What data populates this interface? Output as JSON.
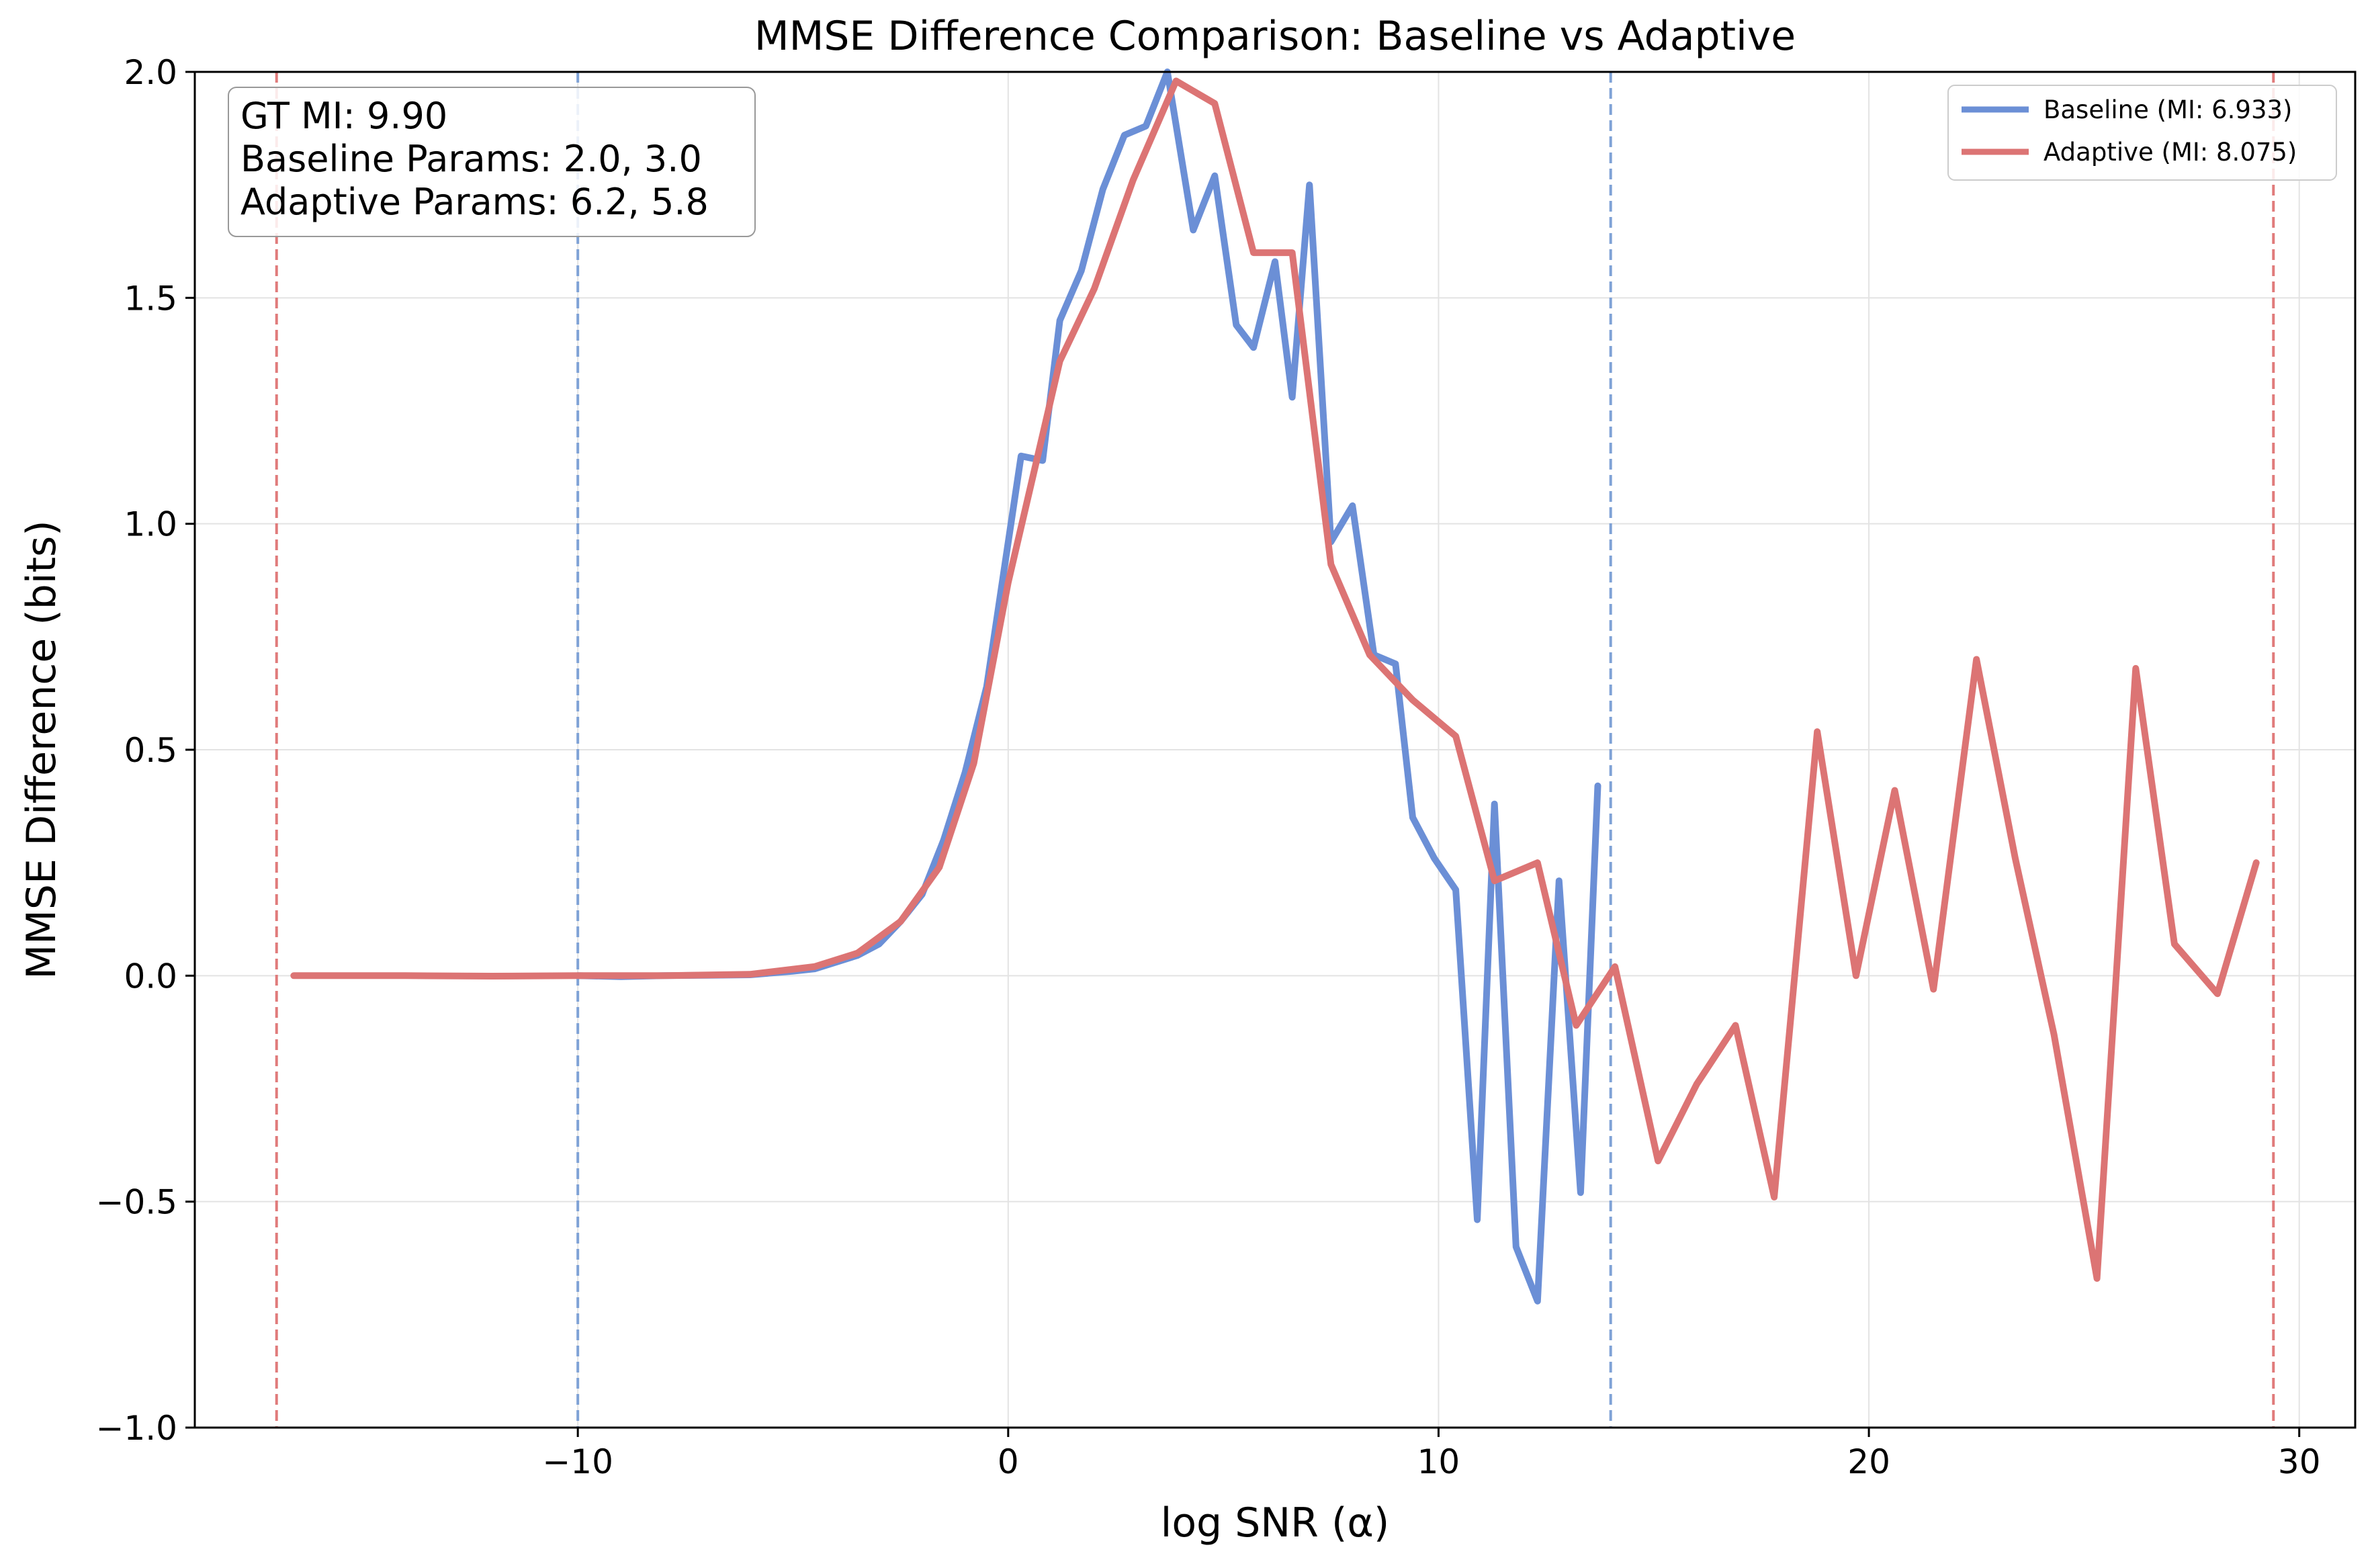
{
  "chart_data": {
    "type": "line",
    "title": "MMSE Difference Comparison: Baseline vs Adaptive",
    "xlabel": "log SNR (α)",
    "ylabel": "MMSE Difference (bits)",
    "xlim": [
      -18.9,
      31.3
    ],
    "ylim": [
      -1.0,
      2.0
    ],
    "xticks": [
      -10,
      0,
      10,
      20,
      30
    ],
    "xtick_labels": [
      "−10",
      "0",
      "10",
      "20",
      "30"
    ],
    "yticks": [
      -1.0,
      -0.5,
      0.0,
      0.5,
      1.0,
      1.5,
      2.0
    ],
    "ytick_labels": [
      "−1.0",
      "−0.5",
      "0.0",
      "0.5",
      "1.0",
      "1.5",
      "2.0"
    ],
    "grid": true,
    "legend_position": "top-right",
    "annotation_lines": [
      "GT MI: 9.90",
      "Baseline Params: 2.0, 3.0",
      "Adaptive Params: 6.2, 5.8"
    ],
    "vlines": [
      {
        "x": -17.0,
        "color": "#e07b7b"
      },
      {
        "x": -10.0,
        "color": "#7fa2d6"
      },
      {
        "x": 14.0,
        "color": "#7fa2d6"
      },
      {
        "x": 29.4,
        "color": "#e07b7b"
      }
    ],
    "series": [
      {
        "name": "Baseline (MI: 6.933)",
        "color": "#6b8fd6",
        "points": [
          [
            -10.0,
            0.0
          ],
          [
            -9.0,
            -0.002
          ],
          [
            -8.0,
            0.0
          ],
          [
            -7.0,
            0.001
          ],
          [
            -6.0,
            0.002
          ],
          [
            -5.0,
            0.01
          ],
          [
            -4.5,
            0.015
          ],
          [
            -4.0,
            0.03
          ],
          [
            -3.5,
            0.045
          ],
          [
            -3.0,
            0.07
          ],
          [
            -2.5,
            0.12
          ],
          [
            -2.0,
            0.18
          ],
          [
            -1.5,
            0.3
          ],
          [
            -1.0,
            0.45
          ],
          [
            -0.5,
            0.64
          ],
          [
            0.3,
            1.15
          ],
          [
            0.8,
            1.14
          ],
          [
            1.2,
            1.45
          ],
          [
            1.7,
            1.56
          ],
          [
            2.2,
            1.74
          ],
          [
            2.7,
            1.86
          ],
          [
            3.2,
            1.88
          ],
          [
            3.7,
            2.0
          ],
          [
            4.3,
            1.65
          ],
          [
            4.8,
            1.77
          ],
          [
            5.3,
            1.44
          ],
          [
            5.7,
            1.39
          ],
          [
            6.2,
            1.58
          ],
          [
            6.6,
            1.28
          ],
          [
            7.0,
            1.75
          ],
          [
            7.5,
            0.96
          ],
          [
            8.0,
            1.04
          ],
          [
            8.5,
            0.71
          ],
          [
            9.0,
            0.69
          ],
          [
            9.4,
            0.35
          ],
          [
            9.9,
            0.26
          ],
          [
            10.4,
            0.19
          ],
          [
            10.9,
            -0.54
          ],
          [
            11.3,
            0.38
          ],
          [
            11.8,
            -0.6
          ],
          [
            12.3,
            -0.72
          ],
          [
            12.8,
            0.21
          ],
          [
            13.3,
            -0.48
          ],
          [
            13.7,
            0.42
          ]
        ]
      },
      {
        "name": "Adaptive (MI: 8.075)",
        "color": "#dc7474",
        "points": [
          [
            -16.6,
            0.0
          ],
          [
            -14.0,
            0.0
          ],
          [
            -12.0,
            -0.001
          ],
          [
            -10.0,
            0.0
          ],
          [
            -8.0,
            0.0
          ],
          [
            -6.0,
            0.003
          ],
          [
            -4.5,
            0.02
          ],
          [
            -3.5,
            0.05
          ],
          [
            -2.5,
            0.12
          ],
          [
            -1.6,
            0.24
          ],
          [
            -0.8,
            0.47
          ],
          [
            0.0,
            0.87
          ],
          [
            1.2,
            1.36
          ],
          [
            2.0,
            1.52
          ],
          [
            2.9,
            1.76
          ],
          [
            3.9,
            1.98
          ],
          [
            4.8,
            1.93
          ],
          [
            5.7,
            1.6
          ],
          [
            6.6,
            1.6
          ],
          [
            7.5,
            0.91
          ],
          [
            8.4,
            0.71
          ],
          [
            9.4,
            0.61
          ],
          [
            10.4,
            0.53
          ],
          [
            11.3,
            0.21
          ],
          [
            12.3,
            0.25
          ],
          [
            13.2,
            -0.11
          ],
          [
            14.1,
            0.02
          ],
          [
            15.1,
            -0.41
          ],
          [
            16.0,
            -0.24
          ],
          [
            16.9,
            -0.11
          ],
          [
            17.8,
            -0.49
          ],
          [
            18.8,
            0.54
          ],
          [
            19.7,
            0.0
          ],
          [
            20.6,
            0.41
          ],
          [
            21.5,
            -0.03
          ],
          [
            22.5,
            0.7
          ],
          [
            23.4,
            0.26
          ],
          [
            24.3,
            -0.13
          ],
          [
            25.3,
            -0.67
          ],
          [
            26.2,
            0.68
          ],
          [
            27.1,
            0.07
          ],
          [
            28.1,
            -0.04
          ],
          [
            29.0,
            0.25
          ]
        ]
      }
    ]
  }
}
